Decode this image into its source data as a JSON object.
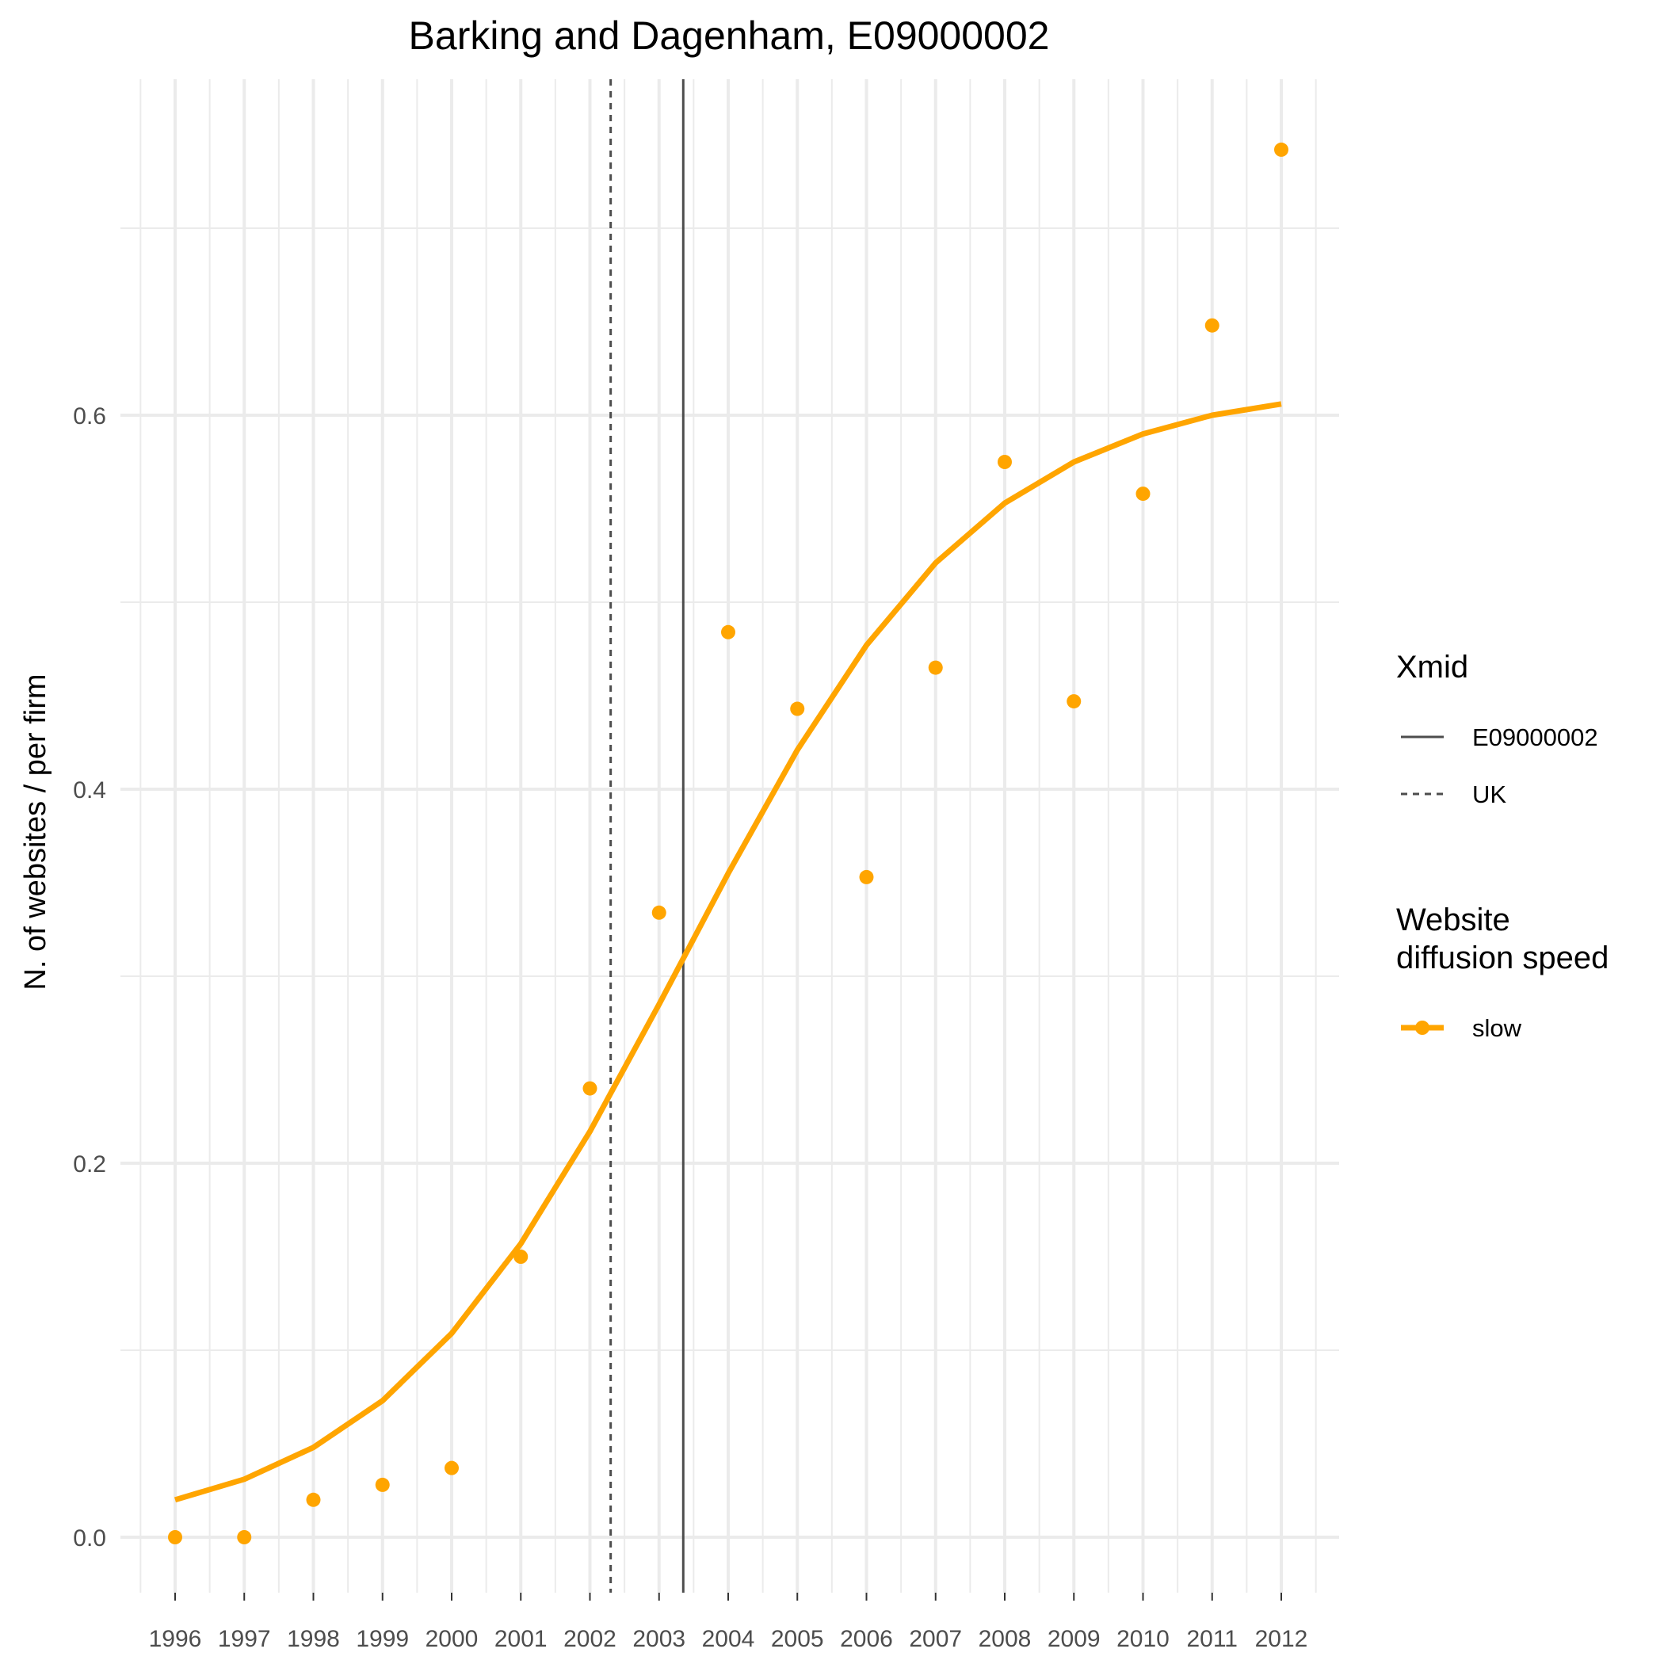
{
  "chart_data": {
    "type": "scatter",
    "title": "Barking and Dagenham, E09000002",
    "xlabel": "",
    "ylabel": "N. of websites / per firm",
    "x_ticks": [
      "1996",
      "1997",
      "1998",
      "1999",
      "2000",
      "2001",
      "2002",
      "2003",
      "2004",
      "2005",
      "2006",
      "2007",
      "2008",
      "2009",
      "2010",
      "2011",
      "2012"
    ],
    "y_ticks": [
      "0.0",
      "0.2",
      "0.4",
      "0.6"
    ],
    "xlim": [
      1995.5,
      2012.5
    ],
    "ylim": [
      -0.035,
      0.78
    ],
    "grid": true,
    "points": {
      "name": "slow",
      "color": "#FFA500",
      "x": [
        1996,
        1997,
        1998,
        1999,
        2000,
        2001,
        2002,
        2003,
        2004,
        2005,
        2006,
        2007,
        2008,
        2009,
        2010,
        2011,
        2012
      ],
      "y": [
        0.0,
        0.0,
        0.02,
        0.028,
        0.037,
        0.15,
        0.24,
        0.334,
        0.484,
        0.443,
        0.353,
        0.465,
        0.575,
        0.447,
        0.558,
        0.648,
        0.742
      ]
    },
    "fitted_line": {
      "name": "slow",
      "color": "#FFA500",
      "x": [
        1996,
        1997,
        1998,
        1999,
        2000,
        2001,
        2002,
        2003,
        2004,
        2005,
        2006,
        2007,
        2008,
        2009,
        2010,
        2011,
        2012
      ],
      "y": [
        0.02,
        0.031,
        0.048,
        0.073,
        0.109,
        0.157,
        0.217,
        0.285,
        0.355,
        0.421,
        0.477,
        0.521,
        0.553,
        0.575,
        0.59,
        0.6,
        0.606
      ]
    },
    "vlines": [
      {
        "name": "E09000002",
        "x": 2003.35,
        "style": "solid",
        "color": "#4d4d4d"
      },
      {
        "name": "UK",
        "x": 2002.3,
        "style": "dashed",
        "color": "#4d4d4d"
      }
    ],
    "legend": {
      "placement": "right",
      "groups": [
        {
          "title": [
            "Xmid"
          ],
          "items": [
            {
              "label": "E09000002",
              "style": "solid"
            },
            {
              "label": "UK",
              "style": "dashed"
            }
          ]
        },
        {
          "title": [
            "Website",
            "diffusion speed"
          ],
          "items": [
            {
              "label": "slow",
              "style": "point-line",
              "color": "#FFA500"
            }
          ]
        }
      ]
    }
  }
}
